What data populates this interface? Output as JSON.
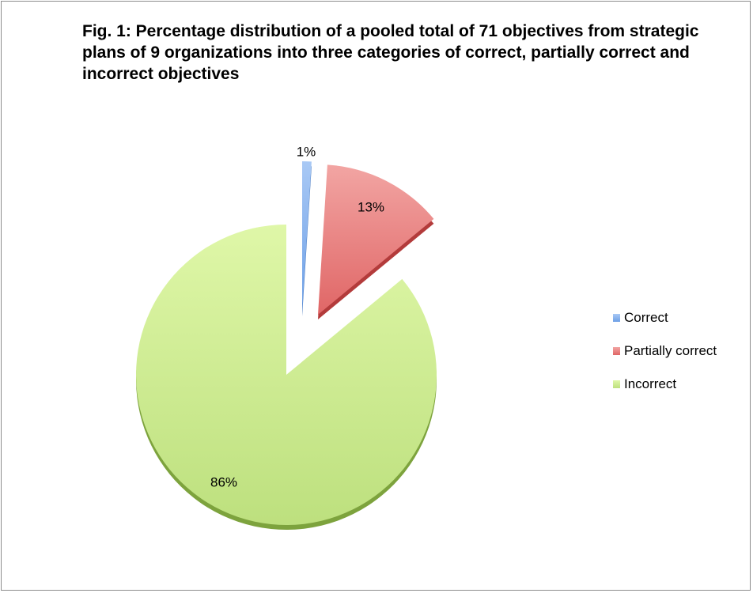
{
  "chart_data": {
    "type": "pie",
    "title": "Fig. 1: Percentage distribution of a pooled total of 71 objectives from strategic plans of 9 organizations into three categories of correct, partially correct and incorrect objectives",
    "exploded": true,
    "legend_position": "right",
    "slices": [
      {
        "label": "Correct",
        "value": 1,
        "data_label": "1%",
        "color": "#6d9fe6",
        "color_light": "#a9c9f5",
        "color_dark": "#3d6fb8"
      },
      {
        "label": "Partially correct",
        "value": 13,
        "data_label": "13%",
        "color": "#e06666",
        "color_light": "#f2a5a3",
        "color_dark": "#b33b3b"
      },
      {
        "label": "Incorrect",
        "value": 86,
        "data_label": "86%",
        "color": "#bde07e",
        "color_light": "#dff7a8",
        "color_dark": "#7da33d"
      }
    ]
  }
}
